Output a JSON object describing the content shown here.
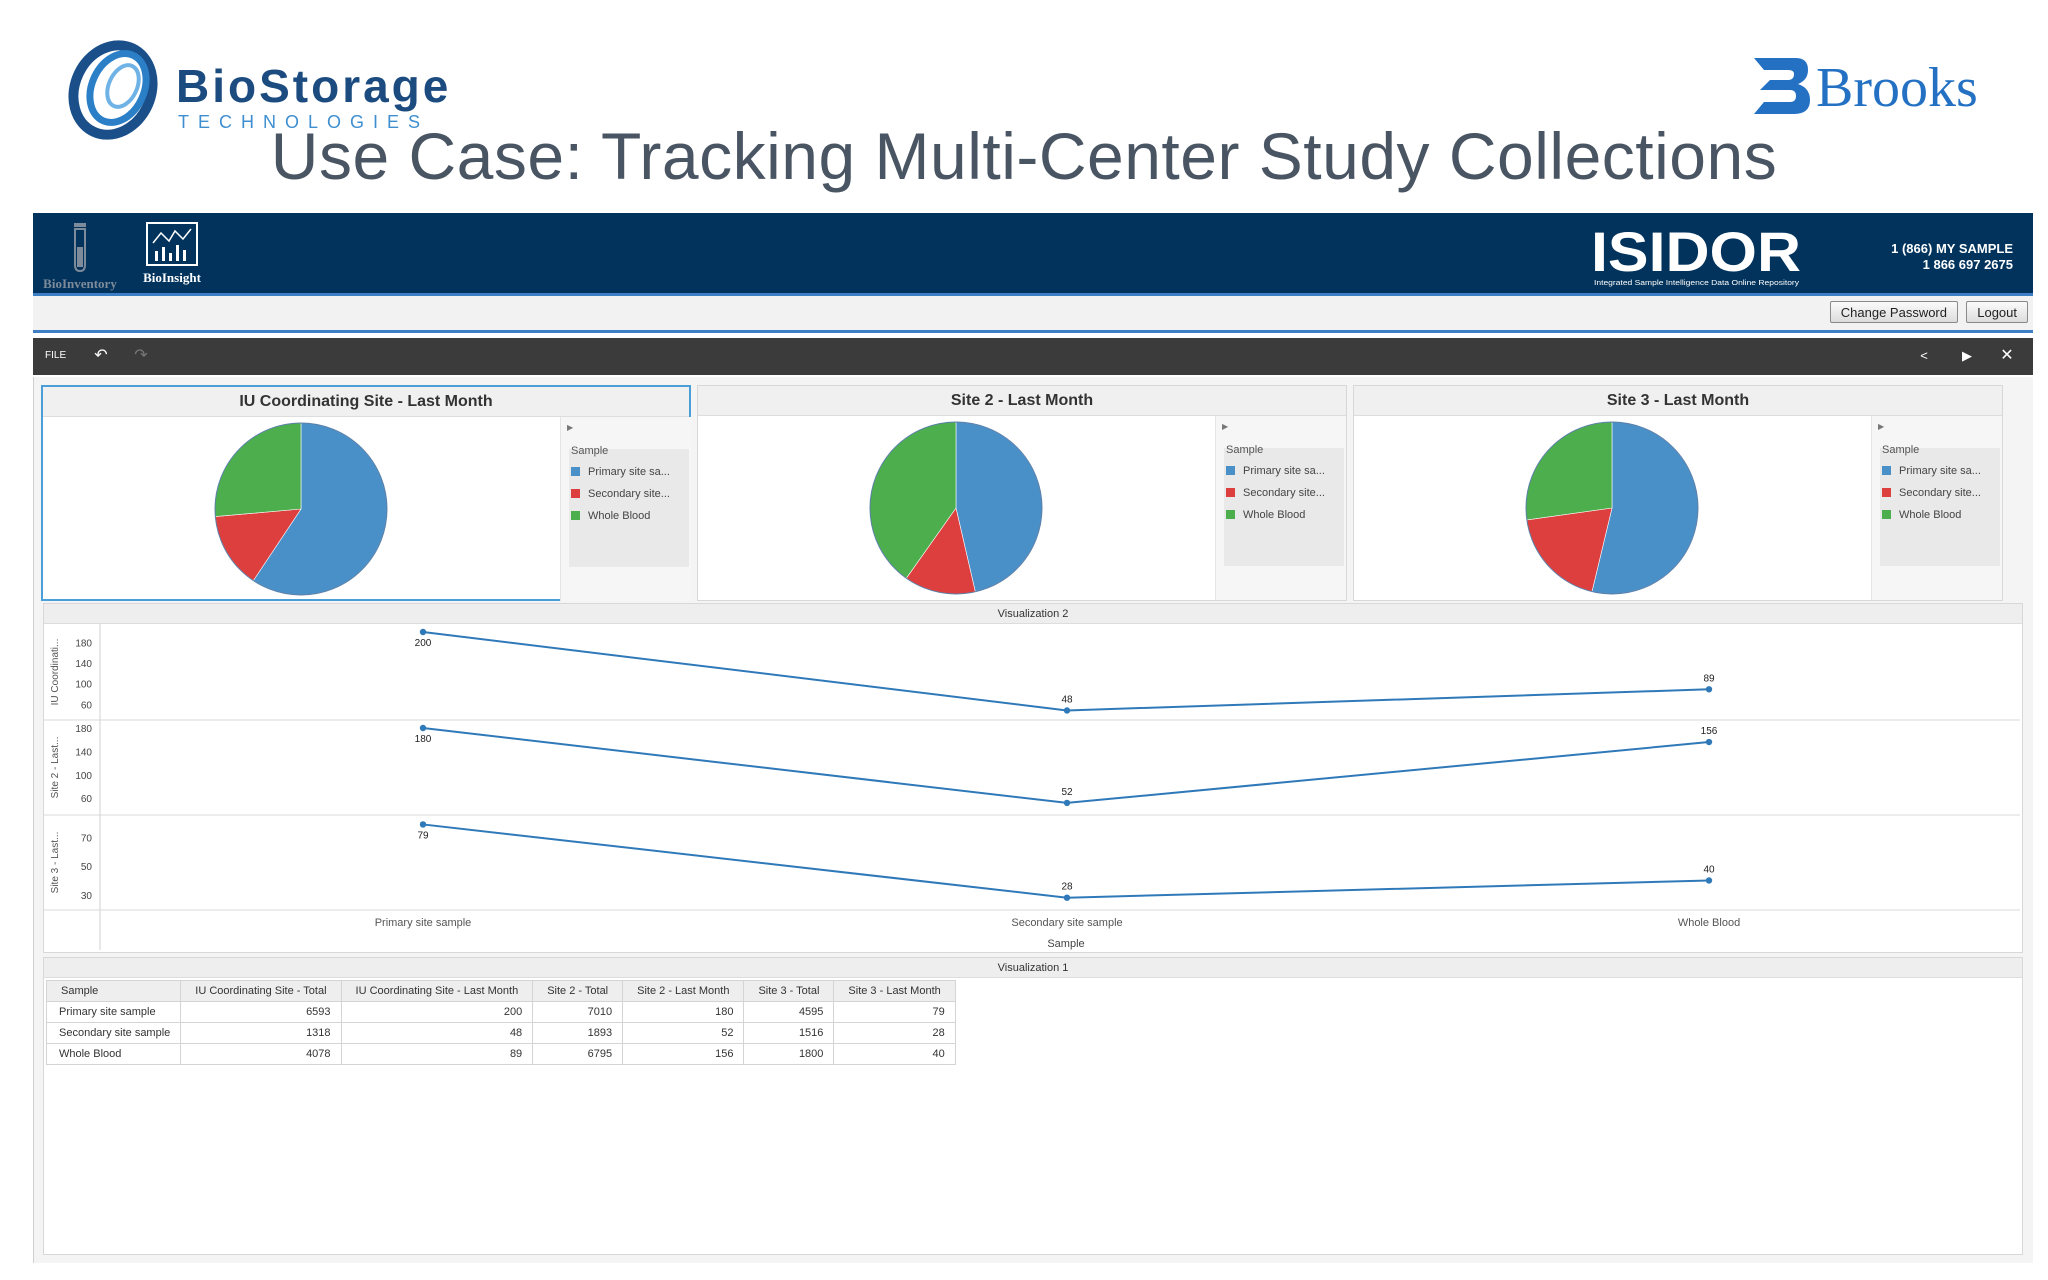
{
  "slide": {
    "title": "Use Case: Tracking Multi-Center Study Collections",
    "left_logo": "BioStorage TECHNOLOGIES",
    "right_logo": "Brooks"
  },
  "app": {
    "nav": [
      {
        "label": "BioInventory",
        "icon": "test-tube-icon"
      },
      {
        "label": "BioInsight",
        "icon": "chart-icon"
      }
    ],
    "logo": "ISIDOR",
    "logo_tagline": "Integrated Sample Intelligence Data Online Repository",
    "phone_line1": "1 (866) MY SAMPLE",
    "phone_line2": "1 866 697 2675",
    "change_password": "Change Password",
    "logout": "Logout",
    "toolbar": {
      "file": "FILE"
    }
  },
  "colors": {
    "primary": "#4a90c8",
    "secondary": "#dd3f3f",
    "whole_blood": "#4cae4c",
    "header": "#02335c"
  },
  "pies": [
    {
      "title": "IU Coordinating Site - Last Month",
      "selected": true
    },
    {
      "title": "Site 2 - Last Month",
      "selected": false
    },
    {
      "title": "Site 3 - Last Month",
      "selected": false
    }
  ],
  "legend": {
    "title": "Sample",
    "items": [
      "Primary site sa...",
      "Secondary site...",
      "Whole Blood"
    ]
  },
  "visualization2": {
    "title": "Visualization 2",
    "xlabel": "Sample",
    "categories": [
      "Primary site sample",
      "Secondary site sample",
      "Whole Blood"
    ],
    "rows": [
      {
        "ylabel": "IU Coordinati...",
        "ticks": [
          180,
          140,
          100,
          60
        ],
        "ylim": [
          45,
          200
        ],
        "values": [
          200,
          48,
          89
        ]
      },
      {
        "ylabel": "Site 2 - Last...",
        "ticks": [
          180,
          140,
          100,
          60
        ],
        "ylim": [
          45,
          180
        ],
        "values": [
          180,
          52,
          156
        ]
      },
      {
        "ylabel": "Site 3 - Last...",
        "ticks": [
          70,
          50,
          30
        ],
        "ylim": [
          25,
          80
        ],
        "values": [
          79,
          28,
          40
        ]
      }
    ]
  },
  "visualization1": {
    "title": "Visualization 1",
    "headers": [
      "Sample",
      "IU Coordinating Site - Total",
      "IU Coordinating Site - Last Month",
      "Site 2 - Total",
      "Site 2 - Last Month",
      "Site 3 - Total",
      "Site 3 - Last Month"
    ],
    "rows": [
      [
        "Primary site sample",
        "6593",
        "200",
        "7010",
        "180",
        "4595",
        "79"
      ],
      [
        "Secondary site sample",
        "1318",
        "48",
        "1893",
        "52",
        "1516",
        "28"
      ],
      [
        "Whole Blood",
        "4078",
        "89",
        "6795",
        "156",
        "1800",
        "40"
      ]
    ]
  },
  "chart_data": [
    {
      "type": "pie",
      "title": "IU Coordinating Site - Last Month",
      "labels": [
        "Primary site sample",
        "Secondary site sample",
        "Whole Blood"
      ],
      "values": [
        200,
        48,
        89
      ]
    },
    {
      "type": "pie",
      "title": "Site 2 - Last Month",
      "labels": [
        "Primary site sample",
        "Secondary site sample",
        "Whole Blood"
      ],
      "values": [
        180,
        52,
        156
      ]
    },
    {
      "type": "pie",
      "title": "Site 3 - Last Month",
      "labels": [
        "Primary site sample",
        "Secondary site sample",
        "Whole Blood"
      ],
      "values": [
        79,
        28,
        40
      ]
    },
    {
      "type": "line",
      "title": "Visualization 2",
      "xlabel": "Sample",
      "categories": [
        "Primary site sample",
        "Secondary site sample",
        "Whole Blood"
      ],
      "series": [
        {
          "name": "IU Coordinati...",
          "values": [
            200,
            48,
            89
          ]
        },
        {
          "name": "Site 2 - Last...",
          "values": [
            180,
            52,
            156
          ]
        },
        {
          "name": "Site 3 - Last...",
          "values": [
            79,
            28,
            40
          ]
        }
      ]
    }
  ]
}
